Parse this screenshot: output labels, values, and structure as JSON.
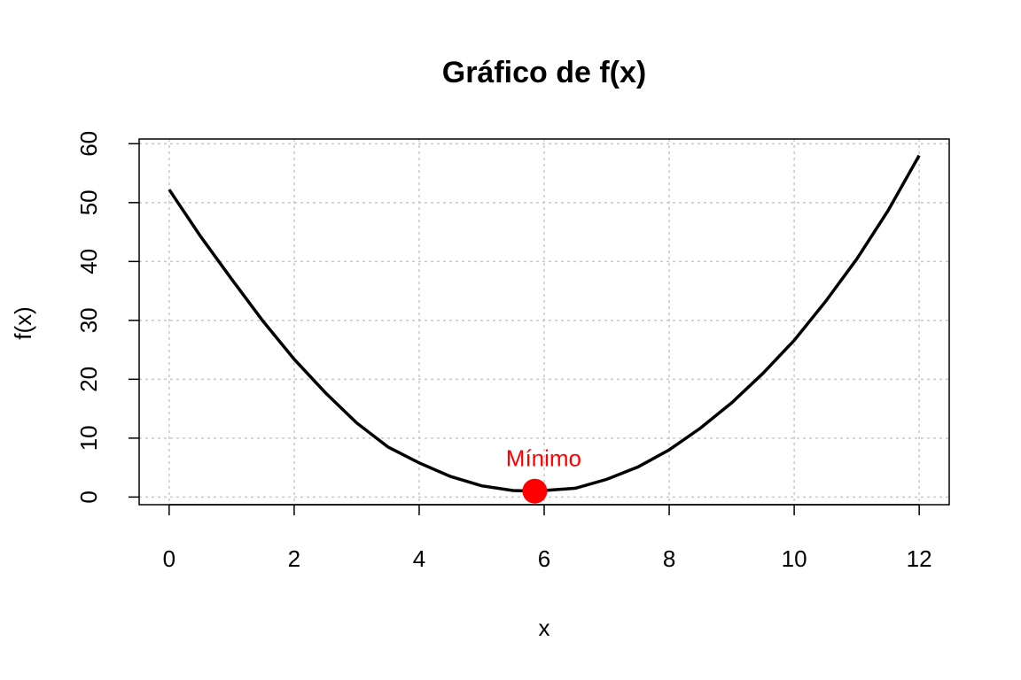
{
  "chart_data": {
    "type": "line",
    "title": "Gráfico de f(x)",
    "xlabel": "x",
    "ylabel": "f(x)",
    "xlim": [
      -0.48,
      12.48
    ],
    "ylim": [
      -1.3,
      60.8
    ],
    "xticks": [
      0,
      2,
      4,
      6,
      8,
      10,
      12
    ],
    "yticks": [
      0,
      10,
      20,
      30,
      40,
      50,
      60
    ],
    "grid": true,
    "curve": {
      "x": [
        0,
        0.5,
        1,
        1.5,
        2,
        2.5,
        3,
        3.5,
        4,
        4.5,
        5,
        5.5,
        5.85,
        6,
        6.5,
        7,
        7.5,
        8,
        8.5,
        9,
        9.5,
        10,
        10.5,
        11,
        11.5,
        12
      ],
      "y": [
        52.2,
        44.3,
        37.0,
        29.9,
        23.4,
        17.7,
        12.6,
        8.5,
        5.8,
        3.5,
        1.9,
        1.1,
        1.0,
        1.1,
        1.5,
        3.0,
        5.1,
        8.0,
        11.7,
        16.0,
        21.0,
        26.6,
        33.2,
        40.4,
        48.6,
        58.0
      ]
    },
    "minimum": {
      "x": 5.85,
      "y": 1.0,
      "label": "Mínimo",
      "color": "#ff0000"
    }
  }
}
